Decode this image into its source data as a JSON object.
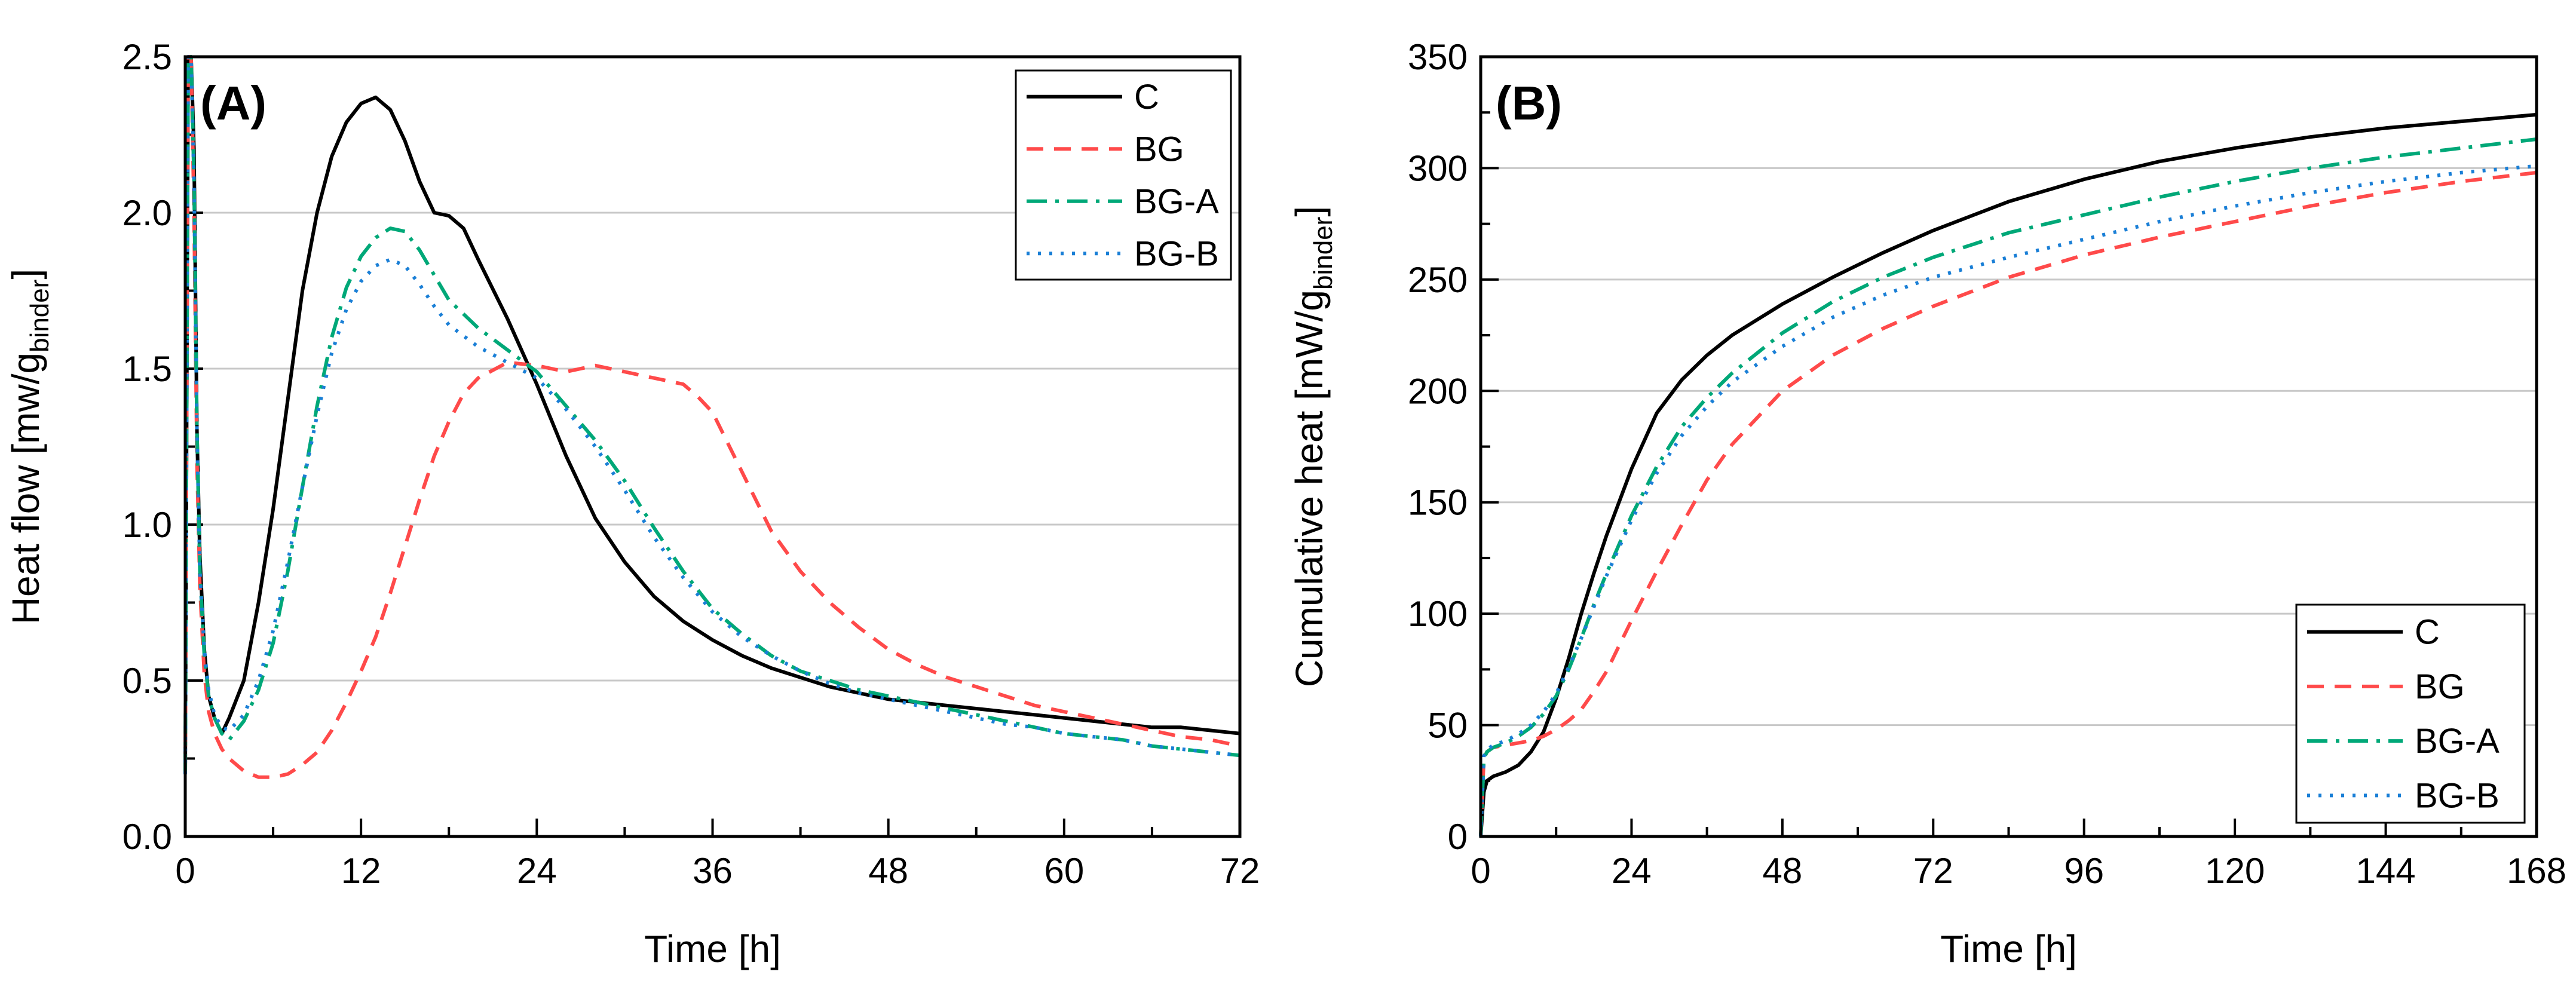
{
  "colors": {
    "C": "#000000",
    "BG": "#ff4a4a",
    "BG-A": "#00a878",
    "BG-B": "#1a7fd6",
    "grid": "#c8c8c8"
  },
  "chart_data": [
    {
      "id": "A",
      "type": "line",
      "panel_label": "(A)",
      "xlabel": "Time [h]",
      "ylabel_prefix": "Heat flow [mw/g",
      "ylabel_subscript": "binder",
      "ylabel_suffix": "]",
      "xlim": [
        0,
        72
      ],
      "ylim": [
        0,
        2.5
      ],
      "xticks": [
        0,
        12,
        24,
        36,
        48,
        60,
        72
      ],
      "xtick_labels": [
        "0",
        "12",
        "24",
        "36",
        "48",
        "60",
        "72"
      ],
      "yticks": [
        0,
        0.5,
        1.0,
        1.5,
        2.0,
        2.5
      ],
      "ytick_labels": [
        "0.0",
        "0.5",
        "1.0",
        "1.5",
        "2.0",
        "2.5"
      ],
      "grid": "horizontal",
      "legend_position": "top-right",
      "series": [
        {
          "name": "C",
          "label": "C",
          "style": "solid",
          "x": [
            0,
            0.2,
            0.4,
            0.6,
            0.8,
            1.0,
            1.3,
            1.6,
            2.0,
            2.5,
            3,
            4,
            5,
            6,
            7,
            8,
            9,
            10,
            11,
            12,
            13,
            14,
            15,
            16,
            17,
            18,
            19,
            20,
            22,
            24,
            26,
            28,
            30,
            32,
            34,
            36,
            38,
            40,
            42,
            44,
            46,
            48,
            50,
            52,
            54,
            56,
            58,
            60,
            62,
            64,
            66,
            68,
            70,
            72
          ],
          "y": [
            0.2,
            2.5,
            2.5,
            2.2,
            1.3,
            0.9,
            0.6,
            0.45,
            0.38,
            0.33,
            0.38,
            0.5,
            0.75,
            1.05,
            1.4,
            1.75,
            2.0,
            2.18,
            2.29,
            2.35,
            2.37,
            2.33,
            2.23,
            2.1,
            2.0,
            1.99,
            1.95,
            1.85,
            1.66,
            1.45,
            1.22,
            1.02,
            0.88,
            0.77,
            0.69,
            0.63,
            0.58,
            0.54,
            0.51,
            0.48,
            0.46,
            0.44,
            0.43,
            0.42,
            0.41,
            0.4,
            0.39,
            0.38,
            0.37,
            0.36,
            0.35,
            0.35,
            0.34,
            0.33
          ]
        },
        {
          "name": "BG",
          "label": "BG",
          "style": "dashed",
          "x": [
            0,
            0.2,
            0.4,
            0.6,
            0.8,
            1.0,
            1.3,
            1.6,
            2.0,
            2.5,
            3,
            4,
            5,
            6,
            7,
            8,
            9,
            10,
            11,
            12,
            13,
            14,
            15,
            16,
            17,
            18,
            19,
            20,
            22,
            24,
            26,
            28,
            30,
            32,
            34,
            35,
            36,
            38,
            40,
            42,
            44,
            46,
            48,
            50,
            52,
            54,
            56,
            58,
            60,
            62,
            64,
            66,
            68,
            70,
            72
          ],
          "y": [
            0.2,
            2.5,
            2.5,
            2.0,
            1.2,
            0.8,
            0.52,
            0.4,
            0.33,
            0.28,
            0.25,
            0.21,
            0.19,
            0.19,
            0.2,
            0.23,
            0.27,
            0.34,
            0.43,
            0.53,
            0.64,
            0.78,
            0.93,
            1.08,
            1.22,
            1.33,
            1.42,
            1.47,
            1.52,
            1.51,
            1.49,
            1.51,
            1.49,
            1.47,
            1.45,
            1.41,
            1.36,
            1.17,
            0.98,
            0.85,
            0.75,
            0.67,
            0.6,
            0.55,
            0.51,
            0.48,
            0.45,
            0.42,
            0.4,
            0.38,
            0.36,
            0.34,
            0.32,
            0.31,
            0.29
          ]
        },
        {
          "name": "BG-A",
          "label": "BG-A",
          "style": "dashdot",
          "x": [
            0,
            0.2,
            0.4,
            0.6,
            0.8,
            1.0,
            1.3,
            1.6,
            2.0,
            2.5,
            3,
            4,
            5,
            6,
            7,
            8,
            9,
            10,
            11,
            12,
            13,
            14,
            15,
            16,
            17,
            18,
            20,
            22,
            24,
            26,
            28,
            30,
            32,
            34,
            36,
            38,
            40,
            42,
            44,
            46,
            48,
            50,
            52,
            54,
            56,
            58,
            60,
            62,
            64,
            66,
            68,
            70,
            72
          ],
          "y": [
            0.2,
            2.5,
            2.5,
            2.1,
            1.3,
            0.85,
            0.58,
            0.45,
            0.38,
            0.33,
            0.31,
            0.37,
            0.47,
            0.62,
            0.85,
            1.12,
            1.38,
            1.6,
            1.76,
            1.86,
            1.92,
            1.95,
            1.94,
            1.88,
            1.8,
            1.72,
            1.63,
            1.56,
            1.49,
            1.38,
            1.27,
            1.14,
            0.99,
            0.85,
            0.73,
            0.65,
            0.58,
            0.53,
            0.5,
            0.47,
            0.45,
            0.43,
            0.41,
            0.39,
            0.37,
            0.35,
            0.33,
            0.32,
            0.31,
            0.29,
            0.28,
            0.27,
            0.26
          ]
        },
        {
          "name": "BG-B",
          "label": "BG-B",
          "style": "dotted",
          "x": [
            0,
            0.2,
            0.4,
            0.6,
            0.8,
            1.0,
            1.3,
            1.6,
            2.0,
            2.5,
            3,
            4,
            5,
            6,
            7,
            8,
            9,
            10,
            11,
            12,
            13,
            14,
            15,
            16,
            17,
            18,
            20,
            22,
            24,
            26,
            28,
            30,
            32,
            34,
            36,
            38,
            40,
            42,
            44,
            46,
            48,
            50,
            52,
            54,
            56,
            58,
            60,
            62,
            64,
            66,
            68,
            70,
            72
          ],
          "y": [
            0.2,
            2.5,
            2.5,
            2.1,
            1.3,
            0.85,
            0.6,
            0.47,
            0.39,
            0.35,
            0.34,
            0.39,
            0.5,
            0.66,
            0.88,
            1.12,
            1.35,
            1.55,
            1.69,
            1.78,
            1.83,
            1.85,
            1.83,
            1.77,
            1.7,
            1.64,
            1.57,
            1.52,
            1.47,
            1.37,
            1.25,
            1.11,
            0.96,
            0.83,
            0.72,
            0.64,
            0.58,
            0.53,
            0.49,
            0.46,
            0.44,
            0.42,
            0.4,
            0.38,
            0.36,
            0.35,
            0.33,
            0.32,
            0.31,
            0.29,
            0.28,
            0.27,
            0.26
          ]
        }
      ]
    },
    {
      "id": "B",
      "type": "line",
      "panel_label": "(B)",
      "xlabel": "Time [h]",
      "ylabel_prefix": "Cumulative heat [mW/g",
      "ylabel_subscript": "binder",
      "ylabel_suffix": "]",
      "xlim": [
        0,
        168
      ],
      "ylim": [
        0,
        350
      ],
      "xticks": [
        0,
        24,
        48,
        72,
        96,
        120,
        144,
        168
      ],
      "xtick_labels": [
        "0",
        "24",
        "48",
        "72",
        "96",
        "120",
        "144",
        "168"
      ],
      "yticks": [
        0,
        50,
        100,
        150,
        200,
        250,
        300,
        350
      ],
      "ytick_labels": [
        "0",
        "50",
        "100",
        "150",
        "200",
        "250",
        "300",
        "350"
      ],
      "grid": "horizontal",
      "legend_position": "bottom-right",
      "series": [
        {
          "name": "C",
          "label": "C",
          "style": "solid",
          "x": [
            0,
            0.5,
            1,
            2,
            4,
            6,
            8,
            10,
            12,
            14,
            16,
            18,
            20,
            24,
            28,
            32,
            36,
            40,
            48,
            56,
            64,
            72,
            84,
            96,
            108,
            120,
            132,
            144,
            156,
            168
          ],
          "y": [
            0,
            20,
            25,
            27,
            29,
            32,
            38,
            47,
            62,
            80,
            100,
            118,
            135,
            165,
            190,
            205,
            216,
            225,
            239,
            251,
            262,
            272,
            285,
            295,
            303,
            309,
            314,
            318,
            321,
            324
          ]
        },
        {
          "name": "BG",
          "label": "BG",
          "style": "dashed",
          "x": [
            0,
            0.5,
            1,
            2,
            4,
            6,
            8,
            10,
            12,
            14,
            16,
            18,
            20,
            24,
            28,
            32,
            36,
            40,
            48,
            56,
            64,
            72,
            84,
            96,
            108,
            120,
            132,
            144,
            156,
            168
          ],
          "y": [
            0,
            35,
            38,
            40,
            41,
            42,
            43,
            45,
            48,
            52,
            57,
            65,
            74,
            97,
            119,
            140,
            160,
            176,
            200,
            216,
            228,
            238,
            251,
            261,
            269,
            276,
            283,
            289,
            294,
            298
          ]
        },
        {
          "name": "BG-A",
          "label": "BG-A",
          "style": "dashdot",
          "x": [
            0,
            0.5,
            1,
            2,
            4,
            6,
            8,
            10,
            12,
            14,
            16,
            18,
            20,
            24,
            28,
            32,
            36,
            40,
            48,
            56,
            64,
            72,
            84,
            96,
            108,
            120,
            132,
            144,
            156,
            168
          ],
          "y": [
            0,
            35,
            38,
            40,
            42,
            45,
            49,
            55,
            63,
            75,
            89,
            104,
            118,
            144,
            166,
            184,
            197,
            208,
            226,
            240,
            251,
            260,
            271,
            279,
            287,
            294,
            300,
            305,
            309,
            313
          ]
        },
        {
          "name": "BG-B",
          "label": "BG-B",
          "style": "dotted",
          "x": [
            0,
            0.5,
            1,
            2,
            4,
            6,
            8,
            10,
            12,
            14,
            16,
            18,
            20,
            24,
            28,
            32,
            36,
            40,
            48,
            56,
            64,
            72,
            84,
            96,
            108,
            120,
            132,
            144,
            156,
            168
          ],
          "y": [
            0,
            36,
            39,
            41,
            43,
            46,
            50,
            56,
            64,
            76,
            89,
            103,
            117,
            142,
            163,
            180,
            193,
            204,
            220,
            233,
            243,
            251,
            260,
            268,
            276,
            283,
            289,
            294,
            298,
            301
          ]
        }
      ]
    }
  ]
}
